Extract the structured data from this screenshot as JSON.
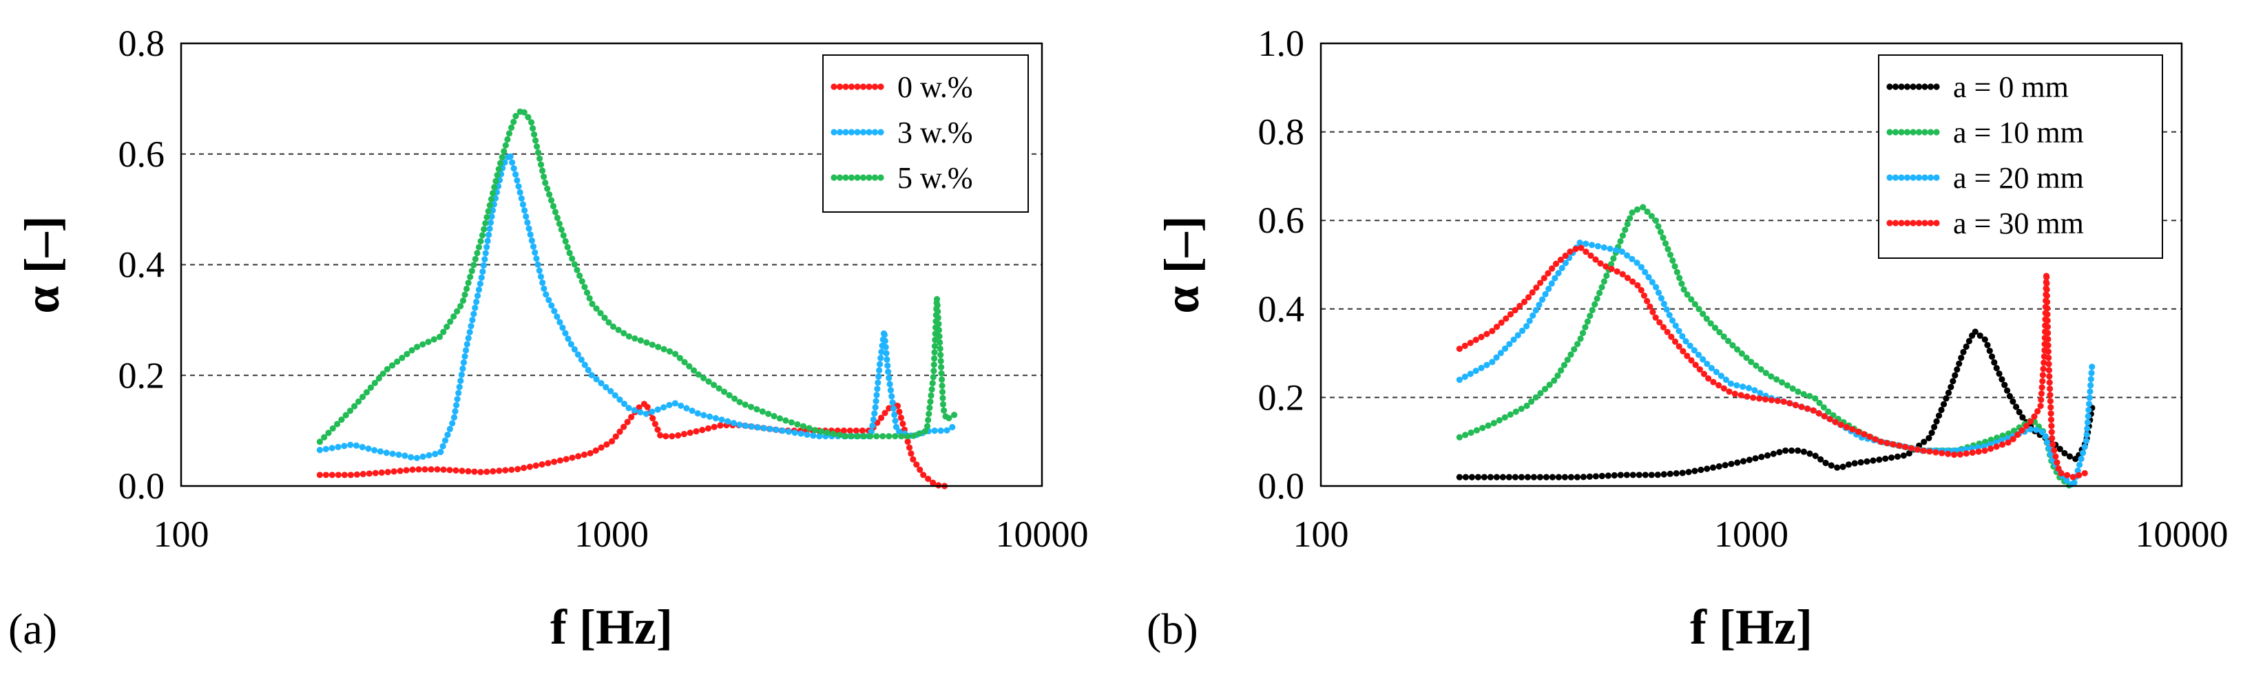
{
  "chart_data": [
    {
      "type": "line",
      "panel_label": "(a)",
      "xlabel": "f [Hz]",
      "ylabel": "α [–]",
      "xscale": "log",
      "xlim": [
        100,
        10000
      ],
      "ylim": [
        0,
        0.8
      ],
      "xticks": [
        100,
        1000,
        10000
      ],
      "xtick_labels": [
        "100",
        "1000",
        "10000"
      ],
      "yticks": [
        0,
        0.2,
        0.4,
        0.6,
        0.8
      ],
      "ytick_labels": [
        "0.0",
        "0.2",
        "0.4",
        "0.6",
        "0.8"
      ],
      "grid": "horizontal dashed",
      "legend_position": "top-right",
      "series": [
        {
          "name": "0 w.%",
          "color": "#ff1a1a",
          "line_style": "dotted",
          "x": [
            210,
            250,
            300,
            350,
            400,
            500,
            600,
            700,
            800,
            900,
            1000,
            1050,
            1100,
            1150,
            1200,
            1250,
            1300,
            1400,
            1600,
            1800,
            2000,
            2500,
            3000,
            3500,
            4000,
            4200,
            4400,
            4600,
            4800,
            5000,
            5300,
            5600,
            5800,
            6000
          ],
          "y": [
            0.02,
            0.02,
            0.025,
            0.03,
            0.03,
            0.025,
            0.03,
            0.04,
            0.05,
            0.06,
            0.08,
            0.1,
            0.12,
            0.14,
            0.15,
            0.12,
            0.09,
            0.09,
            0.1,
            0.11,
            0.11,
            0.1,
            0.1,
            0.1,
            0.1,
            0.12,
            0.14,
            0.15,
            0.1,
            0.05,
            0.02,
            0.005,
            0.0,
            0.0
          ]
        },
        {
          "name": "3 w.%",
          "color": "#1fb4ff",
          "line_style": "dotted",
          "x": [
            210,
            230,
            250,
            280,
            300,
            330,
            350,
            400,
            430,
            460,
            500,
            530,
            560,
            580,
            600,
            650,
            700,
            800,
            900,
            1000,
            1100,
            1200,
            1300,
            1400,
            1500,
            1600,
            1800,
            2000,
            2500,
            3000,
            3500,
            4000,
            4100,
            4200,
            4300,
            4400,
            4600,
            5000,
            5500,
            6000,
            6300
          ],
          "y": [
            0.065,
            0.07,
            0.075,
            0.065,
            0.06,
            0.055,
            0.05,
            0.06,
            0.12,
            0.25,
            0.38,
            0.5,
            0.58,
            0.6,
            0.56,
            0.45,
            0.35,
            0.26,
            0.2,
            0.17,
            0.14,
            0.13,
            0.14,
            0.15,
            0.14,
            0.13,
            0.12,
            0.11,
            0.1,
            0.09,
            0.09,
            0.09,
            0.14,
            0.22,
            0.28,
            0.2,
            0.1,
            0.09,
            0.1,
            0.1,
            0.11
          ]
        },
        {
          "name": "5 w.%",
          "color": "#22bb55",
          "line_style": "dotted",
          "x": [
            210,
            250,
            300,
            350,
            400,
            450,
            500,
            550,
            580,
            600,
            620,
            650,
            700,
            800,
            900,
            1000,
            1100,
            1200,
            1400,
            1600,
            2000,
            2500,
            3000,
            3500,
            4000,
            4500,
            5000,
            5400,
            5600,
            5700,
            5800,
            5900,
            6000,
            6300
          ],
          "y": [
            0.08,
            0.14,
            0.21,
            0.25,
            0.27,
            0.33,
            0.45,
            0.58,
            0.64,
            0.67,
            0.68,
            0.66,
            0.55,
            0.42,
            0.33,
            0.29,
            0.27,
            0.26,
            0.24,
            0.2,
            0.15,
            0.12,
            0.1,
            0.09,
            0.09,
            0.09,
            0.09,
            0.1,
            0.2,
            0.34,
            0.25,
            0.14,
            0.12,
            0.13
          ]
        }
      ]
    },
    {
      "type": "line",
      "panel_label": "(b)",
      "xlabel": "f [Hz]",
      "ylabel": "α [–]",
      "xscale": "log",
      "xlim": [
        100,
        10000
      ],
      "ylim": [
        0,
        1.0
      ],
      "xticks": [
        100,
        1000,
        10000
      ],
      "xtick_labels": [
        "100",
        "1000",
        "10000"
      ],
      "yticks": [
        0,
        0.2,
        0.4,
        0.6,
        0.8,
        1.0
      ],
      "ytick_labels": [
        "0.0",
        "0.2",
        "0.4",
        "0.6",
        "0.8",
        "1.0"
      ],
      "grid": "horizontal dashed",
      "legend_position": "top-right",
      "series": [
        {
          "name": "a = 0 mm",
          "color": "#000000",
          "line_style": "dotted",
          "x": [
            210,
            300,
            400,
            500,
            600,
            700,
            800,
            900,
            1000,
            1100,
            1200,
            1300,
            1400,
            1500,
            1600,
            1700,
            2000,
            2300,
            2600,
            2900,
            3100,
            3300,
            3500,
            3700,
            4000,
            4300,
            4600,
            5000,
            5400,
            5700,
            6000,
            6200
          ],
          "y": [
            0.02,
            0.02,
            0.02,
            0.025,
            0.025,
            0.03,
            0.04,
            0.05,
            0.06,
            0.07,
            0.08,
            0.08,
            0.07,
            0.05,
            0.04,
            0.05,
            0.06,
            0.07,
            0.11,
            0.22,
            0.3,
            0.35,
            0.33,
            0.27,
            0.2,
            0.15,
            0.12,
            0.1,
            0.07,
            0.06,
            0.1,
            0.18
          ]
        },
        {
          "name": "a = 10 mm",
          "color": "#22bb55",
          "line_style": "dotted",
          "x": [
            210,
            250,
            300,
            350,
            400,
            450,
            500,
            530,
            560,
            600,
            650,
            700,
            800,
            900,
            1000,
            1100,
            1200,
            1300,
            1400,
            1500,
            1600,
            1800,
            2000,
            2500,
            3000,
            3500,
            4000,
            4500,
            4800,
            5000,
            5200,
            5500
          ],
          "y": [
            0.11,
            0.14,
            0.18,
            0.24,
            0.33,
            0.45,
            0.56,
            0.62,
            0.63,
            0.6,
            0.52,
            0.44,
            0.37,
            0.32,
            0.28,
            0.25,
            0.23,
            0.21,
            0.2,
            0.17,
            0.15,
            0.12,
            0.1,
            0.08,
            0.08,
            0.1,
            0.12,
            0.15,
            0.12,
            0.05,
            0.02,
            0.0
          ]
        },
        {
          "name": "a = 20 mm",
          "color": "#1fb4ff",
          "line_style": "dotted",
          "x": [
            210,
            250,
            300,
            350,
            400,
            450,
            500,
            550,
            600,
            650,
            700,
            800,
            900,
            1000,
            1100,
            1200,
            1400,
            1600,
            1800,
            2000,
            2500,
            3000,
            3500,
            4000,
            4500,
            4800,
            5000,
            5300,
            5600,
            6000,
            6200
          ],
          "y": [
            0.24,
            0.28,
            0.36,
            0.47,
            0.55,
            0.54,
            0.53,
            0.5,
            0.45,
            0.38,
            0.33,
            0.27,
            0.23,
            0.22,
            0.2,
            0.19,
            0.17,
            0.14,
            0.11,
            0.1,
            0.08,
            0.08,
            0.09,
            0.11,
            0.13,
            0.12,
            0.06,
            0.02,
            0.0,
            0.1,
            0.28
          ]
        },
        {
          "name": "a = 30 mm",
          "color": "#ff1a1a",
          "line_style": "dotted",
          "x": [
            210,
            250,
            300,
            350,
            380,
            400,
            450,
            500,
            550,
            600,
            700,
            800,
            900,
            1000,
            1200,
            1400,
            1600,
            1800,
            2000,
            2500,
            3000,
            3500,
            4000,
            4300,
            4500,
            4700,
            4800,
            4850,
            4900,
            5000,
            5200,
            5600,
            6000
          ],
          "y": [
            0.31,
            0.35,
            0.42,
            0.5,
            0.53,
            0.54,
            0.5,
            0.48,
            0.45,
            0.38,
            0.3,
            0.24,
            0.21,
            0.2,
            0.19,
            0.17,
            0.14,
            0.12,
            0.1,
            0.08,
            0.07,
            0.08,
            0.1,
            0.13,
            0.15,
            0.18,
            0.3,
            0.48,
            0.3,
            0.1,
            0.03,
            0.02,
            0.03
          ]
        }
      ]
    }
  ]
}
